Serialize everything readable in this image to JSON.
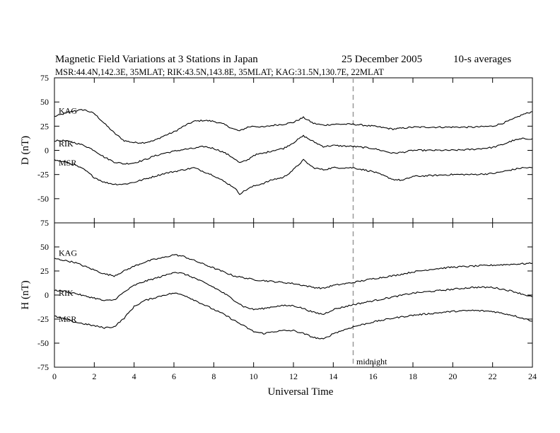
{
  "title": "Magnetic Field Variations at 3 Stations in Japan",
  "date": "25  December 2005",
  "averaging": "10-s averages",
  "stations_line": "MSR:44.4N,142.3E, 35MLAT;   RIK:43.5N,143.8E, 35MLAT;   KAG:31.5N,130.7E, 22MLAT",
  "xlabel": "Universal Time",
  "midnight_label": "midnight",
  "chart_data": [
    {
      "type": "line",
      "ylabel": "D (nT)",
      "xlim": [
        0,
        24
      ],
      "ylim": [
        -75,
        75
      ],
      "y_ticks": [
        -75,
        -50,
        -25,
        0,
        25,
        50,
        75
      ],
      "x_ticks": [
        0,
        2,
        4,
        6,
        8,
        10,
        12,
        14,
        16,
        18,
        20,
        22,
        24
      ],
      "grid": false,
      "vline_x": 15,
      "series": [
        {
          "name": "KAG",
          "points": [
            [
              0,
              35
            ],
            [
              0.5,
              38
            ],
            [
              1,
              41
            ],
            [
              1.5,
              42
            ],
            [
              2,
              38
            ],
            [
              2.5,
              28
            ],
            [
              3,
              18
            ],
            [
              3.5,
              10
            ],
            [
              4,
              8
            ],
            [
              4.5,
              8
            ],
            [
              5,
              10
            ],
            [
              5.5,
              15
            ],
            [
              6,
              19
            ],
            [
              6.5,
              25
            ],
            [
              7,
              30
            ],
            [
              7.5,
              31
            ],
            [
              8,
              30
            ],
            [
              8.5,
              27
            ],
            [
              9,
              22
            ],
            [
              9.3,
              20
            ],
            [
              9.7,
              24
            ],
            [
              10,
              25
            ],
            [
              10.5,
              24
            ],
            [
              11,
              26
            ],
            [
              11.5,
              27
            ],
            [
              12,
              29
            ],
            [
              12.5,
              34
            ],
            [
              13,
              28
            ],
            [
              13.5,
              26
            ],
            [
              14,
              27
            ],
            [
              15,
              27
            ],
            [
              16,
              25
            ],
            [
              17,
              22
            ],
            [
              18,
              24
            ],
            [
              19,
              24
            ],
            [
              20,
              24
            ],
            [
              21,
              24
            ],
            [
              22,
              25
            ],
            [
              22.5,
              28
            ],
            [
              23,
              32
            ],
            [
              23.5,
              37
            ],
            [
              24,
              40
            ]
          ]
        },
        {
          "name": "RIK",
          "points": [
            [
              0,
              10
            ],
            [
              0.5,
              10
            ],
            [
              1,
              8
            ],
            [
              1.5,
              5
            ],
            [
              2,
              0
            ],
            [
              2.5,
              -7
            ],
            [
              3,
              -12
            ],
            [
              3.5,
              -14
            ],
            [
              4,
              -13
            ],
            [
              4.5,
              -10
            ],
            [
              5,
              -6
            ],
            [
              5.5,
              -3
            ],
            [
              6,
              -1
            ],
            [
              6.5,
              1
            ],
            [
              7,
              2
            ],
            [
              7.5,
              4
            ],
            [
              8,
              2
            ],
            [
              8.5,
              -2
            ],
            [
              9,
              -8
            ],
            [
              9.3,
              -13
            ],
            [
              9.7,
              -10
            ],
            [
              10,
              -5
            ],
            [
              10.5,
              -3
            ],
            [
              11,
              0
            ],
            [
              11.5,
              2
            ],
            [
              12,
              8
            ],
            [
              12.5,
              15
            ],
            [
              13,
              9
            ],
            [
              13.5,
              4
            ],
            [
              14,
              5
            ],
            [
              15,
              4
            ],
            [
              16,
              2
            ],
            [
              17,
              -3
            ],
            [
              17.5,
              -2
            ],
            [
              18,
              0
            ],
            [
              19,
              0
            ],
            [
              20,
              0
            ],
            [
              21,
              1
            ],
            [
              22,
              3
            ],
            [
              22.5,
              6
            ],
            [
              23,
              10
            ],
            [
              23.5,
              12
            ],
            [
              24,
              12
            ]
          ]
        },
        {
          "name": "MSR",
          "points": [
            [
              0,
              -10
            ],
            [
              0.5,
              -12
            ],
            [
              1,
              -15
            ],
            [
              1.5,
              -20
            ],
            [
              2,
              -28
            ],
            [
              2.5,
              -33
            ],
            [
              3,
              -35
            ],
            [
              3.5,
              -35
            ],
            [
              4,
              -33
            ],
            [
              4.5,
              -30
            ],
            [
              5,
              -27
            ],
            [
              5.5,
              -24
            ],
            [
              6,
              -22
            ],
            [
              6.5,
              -20
            ],
            [
              7,
              -18
            ],
            [
              7.5,
              -22
            ],
            [
              8,
              -26
            ],
            [
              8.5,
              -32
            ],
            [
              9,
              -38
            ],
            [
              9.3,
              -45
            ],
            [
              9.7,
              -40
            ],
            [
              10,
              -37
            ],
            [
              10.5,
              -34
            ],
            [
              11,
              -30
            ],
            [
              11.5,
              -28
            ],
            [
              12,
              -20
            ],
            [
              12.5,
              -10
            ],
            [
              13,
              -18
            ],
            [
              13.5,
              -20
            ],
            [
              14,
              -18
            ],
            [
              15,
              -18
            ],
            [
              16,
              -22
            ],
            [
              17,
              -30
            ],
            [
              17.5,
              -31
            ],
            [
              18,
              -27
            ],
            [
              19,
              -26
            ],
            [
              20,
              -25
            ],
            [
              21,
              -25
            ],
            [
              22,
              -24
            ],
            [
              22.5,
              -22
            ],
            [
              23,
              -20
            ],
            [
              23.5,
              -18
            ],
            [
              24,
              -18
            ]
          ]
        }
      ]
    },
    {
      "type": "line",
      "ylabel": "H (nT)",
      "xlim": [
        0,
        24
      ],
      "ylim": [
        -75,
        75
      ],
      "y_ticks": [
        -75,
        -50,
        -25,
        0,
        25,
        50,
        75
      ],
      "x_ticks": [
        0,
        2,
        4,
        6,
        8,
        10,
        12,
        14,
        16,
        18,
        20,
        22,
        24
      ],
      "grid": false,
      "vline_x": 15,
      "series": [
        {
          "name": "KAG",
          "points": [
            [
              0,
              38
            ],
            [
              0.5,
              36
            ],
            [
              1,
              34
            ],
            [
              1.5,
              30
            ],
            [
              2,
              26
            ],
            [
              2.5,
              22
            ],
            [
              3,
              20
            ],
            [
              3.5,
              25
            ],
            [
              4,
              30
            ],
            [
              4.5,
              34
            ],
            [
              5,
              37
            ],
            [
              5.5,
              39
            ],
            [
              6,
              42
            ],
            [
              6.5,
              40
            ],
            [
              7,
              36
            ],
            [
              7.5,
              32
            ],
            [
              8,
              28
            ],
            [
              8.5,
              24
            ],
            [
              9,
              20
            ],
            [
              9.5,
              18
            ],
            [
              10,
              16
            ],
            [
              10.5,
              15
            ],
            [
              11,
              14
            ],
            [
              11.5,
              13
            ],
            [
              12,
              12
            ],
            [
              12.5,
              10
            ],
            [
              13,
              8
            ],
            [
              13.5,
              7
            ],
            [
              14,
              10
            ],
            [
              15,
              13
            ],
            [
              16,
              17
            ],
            [
              17,
              20
            ],
            [
              18,
              24
            ],
            [
              19,
              27
            ],
            [
              20,
              29
            ],
            [
              21,
              30
            ],
            [
              22,
              31
            ],
            [
              23,
              32
            ],
            [
              24,
              33
            ]
          ]
        },
        {
          "name": "RIK",
          "points": [
            [
              0,
              5
            ],
            [
              0.5,
              4
            ],
            [
              1,
              2
            ],
            [
              1.5,
              -1
            ],
            [
              2,
              -3
            ],
            [
              2.5,
              -6
            ],
            [
              3,
              -5
            ],
            [
              3.5,
              3
            ],
            [
              4,
              10
            ],
            [
              4.5,
              14
            ],
            [
              5,
              17
            ],
            [
              5.5,
              20
            ],
            [
              6,
              24
            ],
            [
              6.5,
              22
            ],
            [
              7,
              18
            ],
            [
              7.5,
              13
            ],
            [
              8,
              8
            ],
            [
              8.5,
              2
            ],
            [
              9,
              -5
            ],
            [
              9.5,
              -12
            ],
            [
              10,
              -15
            ],
            [
              10.5,
              -14
            ],
            [
              11,
              -12
            ],
            [
              11.5,
              -11
            ],
            [
              12,
              -11
            ],
            [
              12.5,
              -14
            ],
            [
              13,
              -18
            ],
            [
              13.5,
              -20
            ],
            [
              14,
              -15
            ],
            [
              15,
              -10
            ],
            [
              16,
              -6
            ],
            [
              17,
              -2
            ],
            [
              18,
              2
            ],
            [
              19,
              4
            ],
            [
              20,
              6
            ],
            [
              21,
              8
            ],
            [
              22,
              8
            ],
            [
              23,
              4
            ],
            [
              24,
              -2
            ]
          ]
        },
        {
          "name": "MSR",
          "points": [
            [
              0,
              -22
            ],
            [
              0.5,
              -25
            ],
            [
              1,
              -28
            ],
            [
              1.5,
              -30
            ],
            [
              2,
              -32
            ],
            [
              2.5,
              -34
            ],
            [
              3,
              -33
            ],
            [
              3.5,
              -24
            ],
            [
              4,
              -12
            ],
            [
              4.5,
              -6
            ],
            [
              5,
              -3
            ],
            [
              5.5,
              0
            ],
            [
              6,
              2
            ],
            [
              6.5,
              0
            ],
            [
              7,
              -5
            ],
            [
              7.5,
              -10
            ],
            [
              8,
              -15
            ],
            [
              8.5,
              -20
            ],
            [
              9,
              -26
            ],
            [
              9.5,
              -32
            ],
            [
              10,
              -38
            ],
            [
              10.5,
              -40
            ],
            [
              11,
              -38
            ],
            [
              11.5,
              -37
            ],
            [
              12,
              -37
            ],
            [
              12.5,
              -40
            ],
            [
              13,
              -44
            ],
            [
              13.5,
              -46
            ],
            [
              14,
              -40
            ],
            [
              15,
              -33
            ],
            [
              16,
              -28
            ],
            [
              17,
              -24
            ],
            [
              18,
              -21
            ],
            [
              19,
              -19
            ],
            [
              20,
              -17
            ],
            [
              21,
              -16
            ],
            [
              22,
              -17
            ],
            [
              23,
              -21
            ],
            [
              24,
              -27
            ]
          ]
        }
      ]
    }
  ]
}
